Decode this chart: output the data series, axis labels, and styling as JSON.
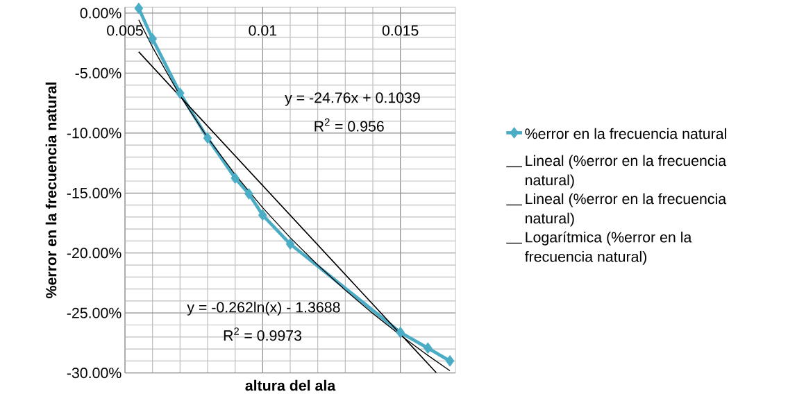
{
  "chart_data": {
    "type": "line",
    "xlabel": "altura del ala",
    "ylabel": "%error en la frecuencia natural",
    "xlim": [
      0.005,
      0.017
    ],
    "xticks": [
      0.005,
      0.01,
      0.015
    ],
    "ylim": [
      -0.3,
      0.005
    ],
    "yticks": [
      {
        "value": 0,
        "label": "0.00%"
      },
      {
        "value": -0.05,
        "label": "-5.00%"
      },
      {
        "value": -0.1,
        "label": "-10.00%"
      },
      {
        "value": -0.15,
        "label": "-15.00%"
      },
      {
        "value": -0.2,
        "label": "-20.00%"
      },
      {
        "value": -0.25,
        "label": "-25.00%"
      },
      {
        "value": -0.3,
        "label": "-30.00%"
      }
    ],
    "grid": true,
    "legend": "right",
    "series": [
      {
        "name": "%error en la frecuencia natural",
        "color": "#4bacc6",
        "marker": "diamond",
        "x": [
          0.0055,
          0.006,
          0.007,
          0.008,
          0.009,
          0.0095,
          0.01,
          0.011,
          0.015,
          0.016,
          0.0168
        ],
        "values": [
          0.004,
          -0.0214,
          -0.0667,
          -0.1042,
          -0.1376,
          -0.1507,
          -0.1684,
          -0.1925,
          -0.2662,
          -0.2793,
          -0.29
        ]
      },
      {
        "name": "Lineal (%error en la frecuencia natural)",
        "color": "#000000",
        "marker": "none",
        "x": [
          0.0055,
          0.0163
        ],
        "values": [
          -0.0323,
          -0.2997
        ]
      },
      {
        "name": "Lineal (%error en la frecuencia natural)",
        "color": "#000000",
        "marker": "none",
        "x": [
          0.0055,
          0.0163
        ],
        "values": [
          -0.0323,
          -0.2997
        ]
      },
      {
        "name": "Logarítmica (%error en la frecuencia natural)",
        "color": "#000000",
        "marker": "none",
        "x": [
          0.0055,
          0.006,
          0.007,
          0.008,
          0.009,
          0.01,
          0.011,
          0.012,
          0.013,
          0.014,
          0.015,
          0.016,
          0.0168
        ],
        "values": [
          -0.0056,
          -0.0284,
          -0.0688,
          -0.1038,
          -0.1346,
          -0.1622,
          -0.1872,
          -0.21,
          -0.231,
          -0.2504,
          -0.2685,
          -0.2854,
          -0.2982
        ]
      }
    ],
    "annotations": [
      "y = -24.76x + 0.1039",
      "R$^{2}$ = 0.956",
      "y = -0.262ln(x) - 1.3688",
      "R$^{2}$ = 0.9973"
    ]
  }
}
